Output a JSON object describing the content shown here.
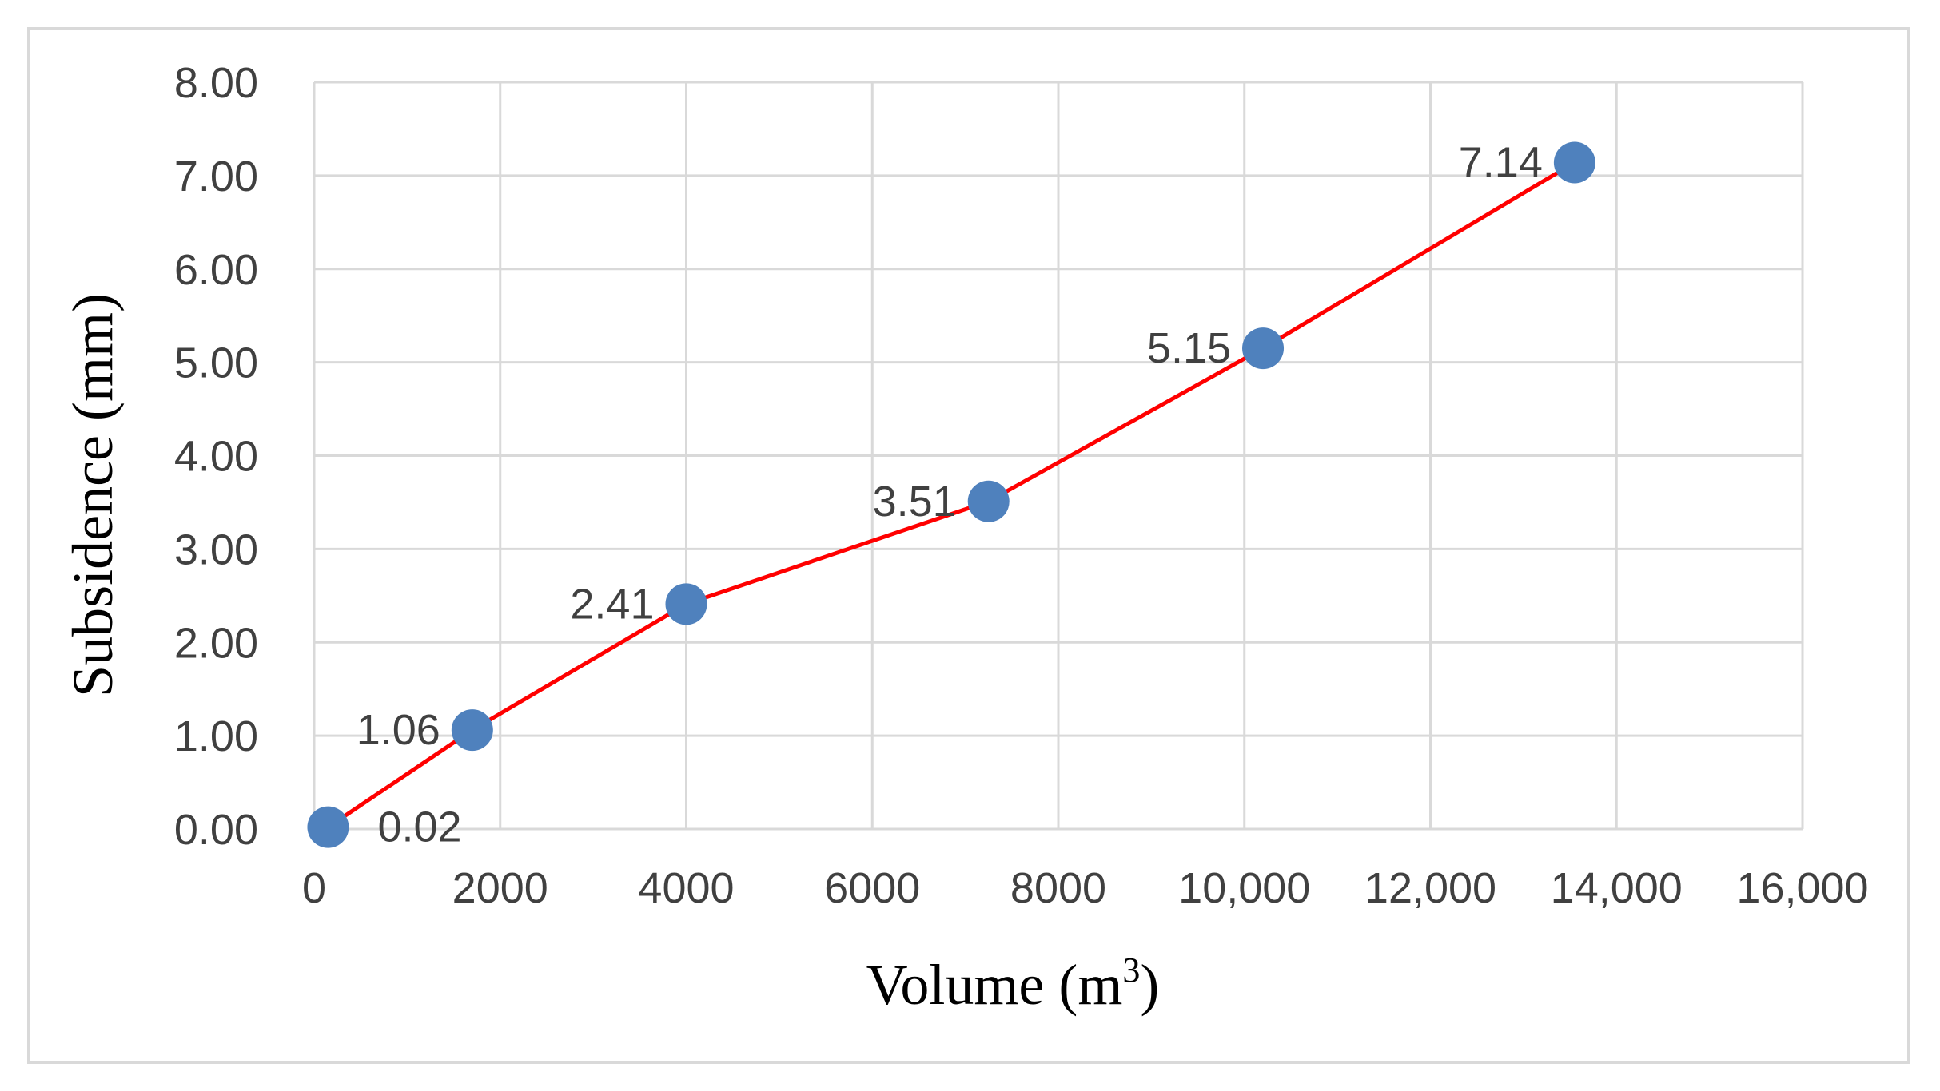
{
  "chart_data": {
    "type": "line",
    "xlabel": "Volume (m",
    "xlabel_superscript": "3",
    "xlabel_suffix": ")",
    "ylabel": "Subsidence (mm)",
    "xlim": [
      0,
      16000
    ],
    "ylim": [
      0,
      8
    ],
    "x_ticks": [
      "0",
      "2000",
      "4000",
      "6000",
      "8000",
      "10,000",
      "12,000",
      "14,000",
      "16,000"
    ],
    "y_ticks": [
      "0.00",
      "1.00",
      "2.00",
      "3.00",
      "4.00",
      "5.00",
      "6.00",
      "7.00",
      "8.00"
    ],
    "grid": true,
    "series": [
      {
        "x": [
          150,
          1700,
          4000,
          7250,
          10200,
          13550
        ],
        "y": [
          0.02,
          1.06,
          2.41,
          3.51,
          5.15,
          7.14
        ],
        "labels": [
          "0.02",
          "1.06",
          "2.41",
          "3.51",
          "5.15",
          "7.14"
        ],
        "line_color": "#ff0000",
        "marker_color": "#4f81bd"
      }
    ]
  }
}
